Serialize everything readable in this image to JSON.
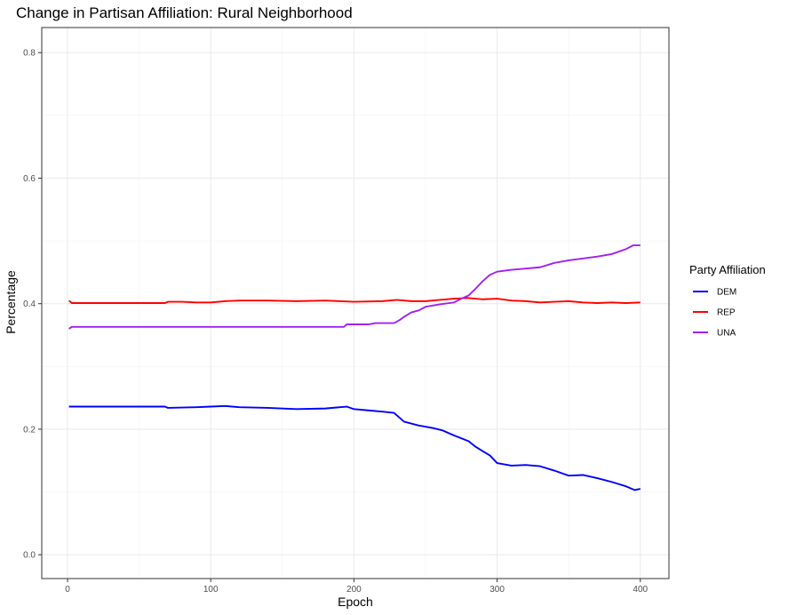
{
  "chart_data": {
    "type": "line",
    "title": "Change in Partisan Affiliation: Rural Neighborhood",
    "xlabel": "Epoch",
    "ylabel": "Percentage",
    "xlim": [
      -18,
      420
    ],
    "ylim": [
      -0.038,
      0.84
    ],
    "x_ticks": [
      0,
      100,
      200,
      300,
      400
    ],
    "y_ticks": [
      0.0,
      0.2,
      0.4,
      0.6,
      0.8
    ],
    "x_tick_labels": [
      "0",
      "100",
      "200",
      "300",
      "400"
    ],
    "y_tick_labels": [
      "0.0",
      "0.2",
      "0.4",
      "0.6",
      "0.8"
    ],
    "grid": true,
    "legend_title": "Party Affiliation",
    "legend_position": "right",
    "series": [
      {
        "name": "DEM",
        "color": "#0000ff",
        "points": [
          [
            1,
            0.236
          ],
          [
            20,
            0.236
          ],
          [
            40,
            0.236
          ],
          [
            68,
            0.236
          ],
          [
            70,
            0.234
          ],
          [
            90,
            0.235
          ],
          [
            100,
            0.236
          ],
          [
            110,
            0.237
          ],
          [
            120,
            0.235
          ],
          [
            140,
            0.234
          ],
          [
            160,
            0.232
          ],
          [
            180,
            0.233
          ],
          [
            195,
            0.236
          ],
          [
            200,
            0.232
          ],
          [
            210,
            0.23
          ],
          [
            220,
            0.228
          ],
          [
            228,
            0.226
          ],
          [
            235,
            0.212
          ],
          [
            245,
            0.206
          ],
          [
            255,
            0.202
          ],
          [
            262,
            0.198
          ],
          [
            270,
            0.19
          ],
          [
            280,
            0.181
          ],
          [
            285,
            0.172
          ],
          [
            290,
            0.165
          ],
          [
            295,
            0.158
          ],
          [
            300,
            0.146
          ],
          [
            310,
            0.142
          ],
          [
            320,
            0.143
          ],
          [
            330,
            0.141
          ],
          [
            340,
            0.134
          ],
          [
            350,
            0.126
          ],
          [
            360,
            0.127
          ],
          [
            370,
            0.122
          ],
          [
            380,
            0.116
          ],
          [
            390,
            0.109
          ],
          [
            396,
            0.103
          ],
          [
            400,
            0.105
          ]
        ]
      },
      {
        "name": "REP",
        "color": "#ff0000",
        "points": [
          [
            1,
            0.405
          ],
          [
            3,
            0.401
          ],
          [
            20,
            0.401
          ],
          [
            40,
            0.401
          ],
          [
            68,
            0.401
          ],
          [
            70,
            0.403
          ],
          [
            80,
            0.403
          ],
          [
            90,
            0.402
          ],
          [
            100,
            0.402
          ],
          [
            110,
            0.404
          ],
          [
            120,
            0.405
          ],
          [
            140,
            0.405
          ],
          [
            160,
            0.404
          ],
          [
            180,
            0.405
          ],
          [
            200,
            0.403
          ],
          [
            220,
            0.404
          ],
          [
            230,
            0.406
          ],
          [
            240,
            0.404
          ],
          [
            250,
            0.404
          ],
          [
            260,
            0.406
          ],
          [
            270,
            0.408
          ],
          [
            280,
            0.409
          ],
          [
            290,
            0.407
          ],
          [
            300,
            0.408
          ],
          [
            310,
            0.405
          ],
          [
            320,
            0.404
          ],
          [
            330,
            0.402
          ],
          [
            340,
            0.403
          ],
          [
            350,
            0.404
          ],
          [
            360,
            0.402
          ],
          [
            370,
            0.401
          ],
          [
            380,
            0.402
          ],
          [
            390,
            0.401
          ],
          [
            400,
            0.402
          ]
        ]
      },
      {
        "name": "UNA",
        "color": "#a020f0",
        "points": [
          [
            1,
            0.36
          ],
          [
            3,
            0.363
          ],
          [
            50,
            0.363
          ],
          [
            100,
            0.363
          ],
          [
            150,
            0.363
          ],
          [
            193,
            0.363
          ],
          [
            195,
            0.367
          ],
          [
            210,
            0.367
          ],
          [
            215,
            0.369
          ],
          [
            228,
            0.369
          ],
          [
            232,
            0.374
          ],
          [
            235,
            0.379
          ],
          [
            240,
            0.386
          ],
          [
            245,
            0.389
          ],
          [
            250,
            0.395
          ],
          [
            260,
            0.399
          ],
          [
            270,
            0.402
          ],
          [
            275,
            0.408
          ],
          [
            280,
            0.413
          ],
          [
            285,
            0.424
          ],
          [
            290,
            0.436
          ],
          [
            295,
            0.446
          ],
          [
            300,
            0.451
          ],
          [
            310,
            0.454
          ],
          [
            320,
            0.456
          ],
          [
            330,
            0.458
          ],
          [
            340,
            0.465
          ],
          [
            350,
            0.469
          ],
          [
            360,
            0.472
          ],
          [
            370,
            0.475
          ],
          [
            380,
            0.479
          ],
          [
            390,
            0.487
          ],
          [
            395,
            0.493
          ],
          [
            400,
            0.493
          ]
        ]
      }
    ]
  }
}
